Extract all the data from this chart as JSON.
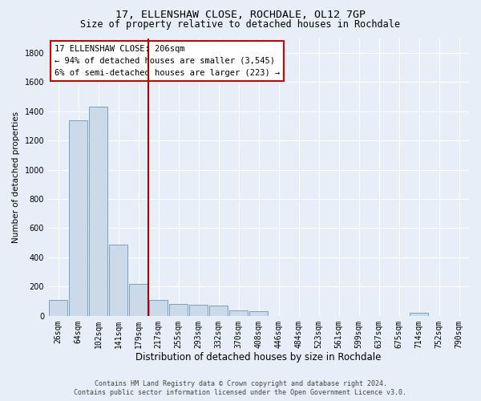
{
  "title": "17, ELLENSHAW CLOSE, ROCHDALE, OL12 7GP",
  "subtitle": "Size of property relative to detached houses in Rochdale",
  "xlabel": "Distribution of detached houses by size in Rochdale",
  "ylabel": "Number of detached properties",
  "bar_color": "#ccd9e8",
  "bar_edge_color": "#7a9fc0",
  "vline_color": "#aa0000",
  "vline_pos": 4.5,
  "categories": [
    "26sqm",
    "64sqm",
    "102sqm",
    "141sqm",
    "179sqm",
    "217sqm",
    "255sqm",
    "293sqm",
    "332sqm",
    "370sqm",
    "408sqm",
    "446sqm",
    "484sqm",
    "523sqm",
    "561sqm",
    "599sqm",
    "637sqm",
    "675sqm",
    "714sqm",
    "752sqm",
    "790sqm"
  ],
  "values": [
    110,
    1340,
    1430,
    490,
    220,
    110,
    80,
    75,
    70,
    40,
    30,
    0,
    0,
    0,
    0,
    0,
    0,
    0,
    20,
    0,
    0
  ],
  "ylim": [
    0,
    1900
  ],
  "yticks": [
    0,
    200,
    400,
    600,
    800,
    1000,
    1200,
    1400,
    1600,
    1800
  ],
  "annotation_text": "17 ELLENSHAW CLOSE: 206sqm\n← 94% of detached houses are smaller (3,545)\n6% of semi-detached houses are larger (223) →",
  "annotation_box_color": "#ffffff",
  "annotation_box_edge_color": "#cc0000",
  "footer_text": "Contains HM Land Registry data © Crown copyright and database right 2024.\nContains public sector information licensed under the Open Government Licence v3.0.",
  "background_color": "#e6eff8",
  "plot_background_color": "#e6eff8",
  "grid_color": "#ffffff",
  "title_fontsize": 9.5,
  "subtitle_fontsize": 8.5,
  "tick_fontsize": 7,
  "ylabel_fontsize": 7.5,
  "xlabel_fontsize": 8.5,
  "annotation_fontsize": 7.5,
  "footer_fontsize": 6
}
